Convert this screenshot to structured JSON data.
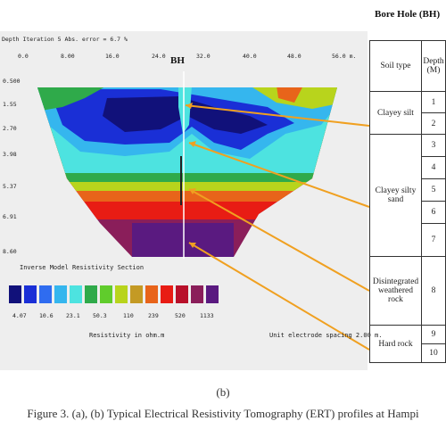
{
  "ert": {
    "header": "Depth  Iteration 5 Abs. error = 6.7 %",
    "x_ticks": [
      "0.0",
      "8.00",
      "16.0",
      "24.0",
      "32.0",
      "40.0",
      "48.0",
      "56.0 m."
    ],
    "y_ticks": [
      "0.500",
      "1.55",
      "2.70",
      "3.98",
      "5.37",
      "6.91",
      "8.60"
    ],
    "bh_label": "BH",
    "legend_title": "Inverse Model Resistivity Section",
    "legend_values": [
      "4.07",
      "10.6",
      "23.1",
      "50.3",
      "110",
      "239",
      "520",
      "1133"
    ],
    "legend_colors": [
      "#11117a",
      "#1a2fd6",
      "#2f6cf0",
      "#35b6ee",
      "#4de3e0",
      "#2faa4a",
      "#60cc2c",
      "#b8d41c",
      "#c49a24",
      "#e8641a",
      "#e81c14",
      "#b8102a",
      "#8a1e5a",
      "#5a1a80"
    ],
    "unit_label": "Resistivity in ohm.m",
    "spacing_label": "Unit electrode spacing 2.00 m."
  },
  "table": {
    "title": "Bore Hole (BH)",
    "head_soil": "Soil type",
    "head_depth": "Depth (M)",
    "layers": [
      {
        "label": "Clayey silt",
        "depths": [
          "1",
          "2"
        ]
      },
      {
        "label": "Clayey silty sand",
        "depths": [
          "3",
          "4",
          "5",
          "6",
          "7"
        ]
      },
      {
        "label": "Disintegrated weathered rock",
        "depths": [
          "8"
        ]
      },
      {
        "label": "Hard rock",
        "depths": [
          "9",
          "10"
        ]
      }
    ]
  },
  "caption_sub": "(b)",
  "caption": "Figure 3. (a), (b) Typical Electrical Resistivity Tomography (ERT) profiles at Hampi"
}
